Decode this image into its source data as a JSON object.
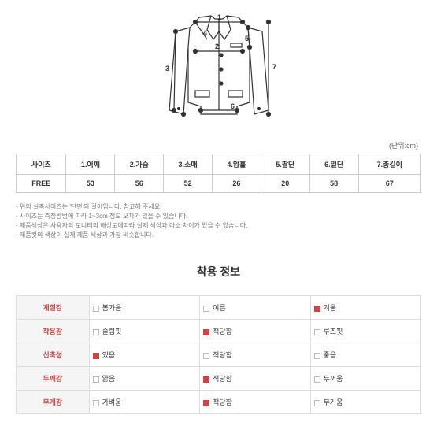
{
  "diagram": {
    "labels": [
      "1",
      "2",
      "3",
      "4",
      "5",
      "6",
      "7"
    ],
    "stroke": "#333"
  },
  "unit_label": "(단위:cm)",
  "size_table": {
    "headers": [
      "사이즈",
      "1.어깨",
      "2.가슴",
      "3.소매",
      "4.암홀",
      "5.팔단",
      "6.밑단",
      "7.총길이"
    ],
    "row_label": "FREE",
    "values": [
      "53",
      "56",
      "52",
      "26",
      "20",
      "58",
      "67"
    ]
  },
  "notes": [
    "- 위의 실측사이즈는 '단면'의 길이입니다. 참고해 주세요.",
    "- 사이즈는 측정방법에 따라 1~3cm 정도 오차가 있을 수 있습니다.",
    "- 제품색상은 사용자의 모니터의 해상도에따라 실제 색상과 다소 차이가 있을 수 있습니다.",
    "- 제품컷의 색상이 실제 제품 색상과 가장 비슷합니다."
  ],
  "section_title": "착용 정보",
  "info_rows": [
    {
      "label": "계절감",
      "opts": [
        {
          "t": "봄가을",
          "s": false
        },
        {
          "t": "여름",
          "s": false
        },
        {
          "t": "겨울",
          "s": true
        }
      ]
    },
    {
      "label": "착용감",
      "opts": [
        {
          "t": "슬림핏",
          "s": false
        },
        {
          "t": "적당함",
          "s": true
        },
        {
          "t": "루즈핏",
          "s": false
        }
      ]
    },
    {
      "label": "신축성",
      "opts": [
        {
          "t": "있음",
          "s": true
        },
        {
          "t": "적당함",
          "s": false
        },
        {
          "t": "좋음",
          "s": false
        }
      ]
    },
    {
      "label": "두께감",
      "opts": [
        {
          "t": "얇음",
          "s": false
        },
        {
          "t": "적당함",
          "s": true
        },
        {
          "t": "두꺼움",
          "s": false
        }
      ]
    },
    {
      "label": "무게감",
      "opts": [
        {
          "t": "가벼움",
          "s": false
        },
        {
          "t": "적당함",
          "s": true
        },
        {
          "t": "무거움",
          "s": false
        }
      ]
    }
  ]
}
